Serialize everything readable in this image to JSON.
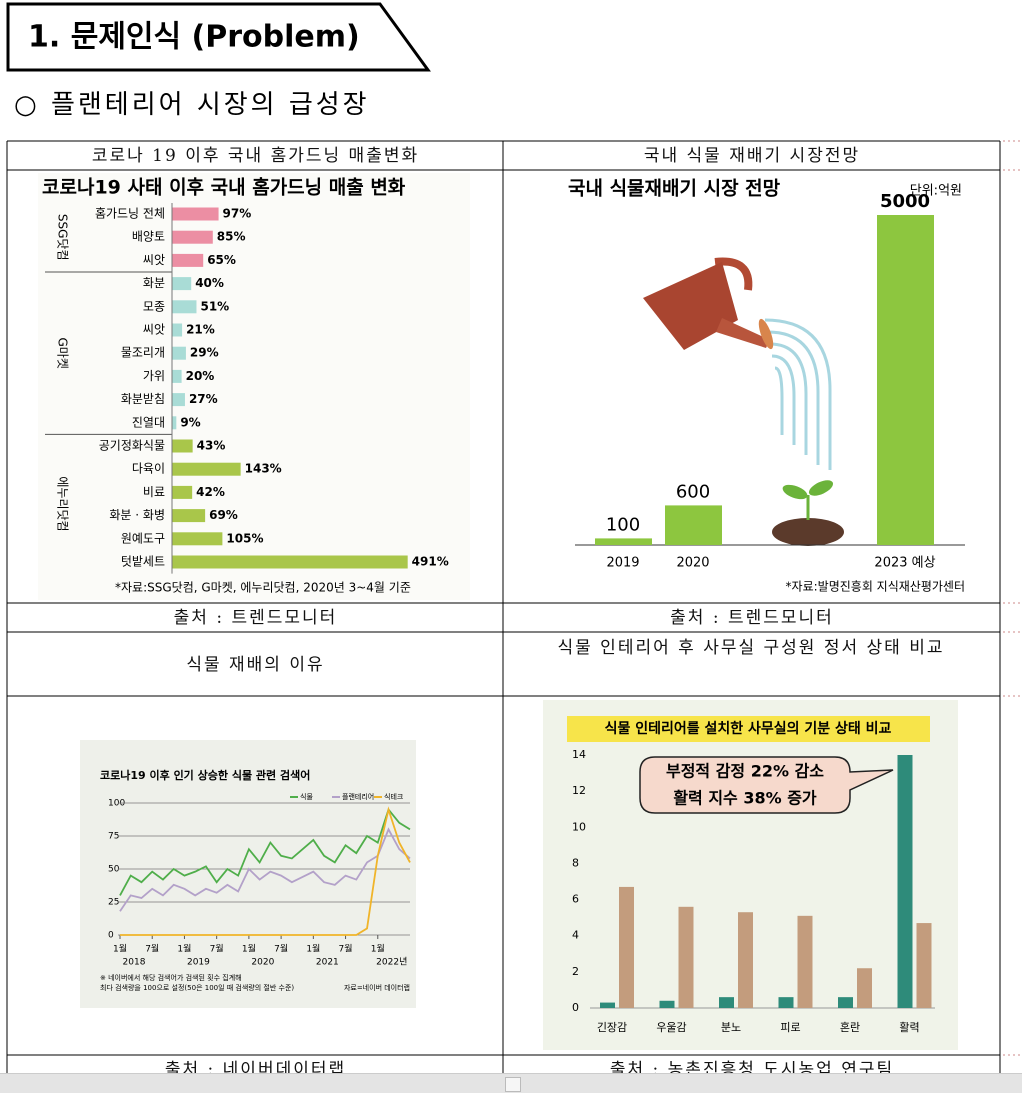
{
  "header": {
    "title": "1. 문제인식 (Problem)"
  },
  "subheading": "○ 플랜테리어 시장의 급성장",
  "table": {
    "cells": [
      [
        "코로나 19 이후 국내 홈가드닝 매출변화",
        "국내 식물 재배기 시장전망"
      ],
      [
        "출처 : 트렌드모니터",
        "출처 : 트렌드모니터"
      ],
      [
        "식물 재배의 이유",
        "식물 인테리어 후 사무실 구성원 정서 상태 비교"
      ],
      [
        "출처 : 네이버데이터랩",
        "출처 : 농촌진흥청 도시농업 연구팀"
      ]
    ]
  },
  "chart_data": [
    {
      "type": "hbar",
      "title": "코로나19 사태 이후 국내 홈가드닝 매출 변화",
      "note": "*자료:SSG닷컴, G마켓, 에누리닷컴, 2020년 3~4월 기준",
      "xlim": [
        0,
        500
      ],
      "series": [
        {
          "name": "SSG닷컴",
          "color": "#ec8ea3",
          "categories": [
            "홈가드닝 전체",
            "배양토",
            "씨앗"
          ],
          "values": [
            97,
            85,
            65
          ],
          "value_labels": [
            "97%",
            "85%",
            "65%"
          ]
        },
        {
          "name": "G마켓",
          "color": "#a9dcd6",
          "categories": [
            "화분",
            "모종",
            "씨앗",
            "물조리개",
            "가위",
            "화분받침",
            "진열대"
          ],
          "values": [
            40,
            51,
            21,
            29,
            20,
            27,
            9
          ],
          "value_labels": [
            "40%",
            "51%",
            "21%",
            "29%",
            "20%",
            "27%",
            "9%"
          ]
        },
        {
          "name": "에누리닷컴",
          "color": "#a9c64a",
          "categories": [
            "공기정화식물",
            "다육이",
            "비료",
            "화분 · 화병",
            "원예도구",
            "텃밭세트"
          ],
          "values": [
            43,
            143,
            42,
            69,
            105,
            491
          ],
          "value_labels": [
            "43%",
            "143%",
            "42%",
            "69%",
            "105%",
            "491%"
          ]
        }
      ]
    },
    {
      "type": "bar",
      "title": "국내 식물재배기 시장 전망",
      "unit": "단위:억원",
      "note": "*자료:발명진흥회 지식재산평가센터",
      "categories": [
        "2019",
        "2020",
        "2023 예상"
      ],
      "values": [
        100,
        600,
        5000
      ],
      "color": "#8dc63f",
      "ylim": [
        0,
        5000
      ]
    },
    {
      "type": "line",
      "title": "코로나19 이후 인기 상승한 식물 관련 검색어",
      "x": [
        "2018-01",
        "2018-03",
        "2018-05",
        "2018-07",
        "2018-09",
        "2018-11",
        "2019-01",
        "2019-03",
        "2019-05",
        "2019-07",
        "2019-09",
        "2019-11",
        "2020-01",
        "2020-03",
        "2020-05",
        "2020-07",
        "2020-09",
        "2020-11",
        "2021-01",
        "2021-03",
        "2021-05",
        "2021-07",
        "2021-09",
        "2021-11",
        "2022-01",
        "2022-03",
        "2022-05",
        "2022-07"
      ],
      "series": [
        {
          "name": "식물",
          "color": "#4fae4a",
          "values": [
            30,
            45,
            40,
            48,
            42,
            50,
            45,
            48,
            52,
            40,
            50,
            45,
            65,
            55,
            70,
            60,
            58,
            65,
            72,
            60,
            55,
            68,
            62,
            75,
            70,
            95,
            85,
            80
          ]
        },
        {
          "name": "플랜테리어",
          "color": "#b3a1c9",
          "values": [
            18,
            30,
            28,
            35,
            30,
            38,
            35,
            30,
            35,
            32,
            38,
            33,
            50,
            42,
            48,
            45,
            40,
            44,
            48,
            40,
            38,
            45,
            42,
            55,
            60,
            80,
            65,
            58
          ]
        },
        {
          "name": "식테크",
          "color": "#f0b429",
          "values": [
            0,
            0,
            0,
            0,
            0,
            0,
            0,
            0,
            0,
            0,
            0,
            0,
            0,
            0,
            0,
            0,
            0,
            0,
            0,
            0,
            0,
            0,
            0,
            5,
            60,
            95,
            70,
            55
          ]
        }
      ],
      "ylim": [
        0,
        100
      ],
      "yticks": [
        0,
        25,
        50,
        75,
        100
      ],
      "grid": true,
      "xticks": [
        {
          "value": "2018-01",
          "label": "1월"
        },
        {
          "value": "2018-07",
          "label": "7월"
        },
        {
          "value": "2019-01",
          "label": "1월"
        },
        {
          "value": "2019-07",
          "label": "7월"
        },
        {
          "value": "2020-01",
          "label": "1월"
        },
        {
          "value": "2020-07",
          "label": "7월"
        },
        {
          "value": "2021-01",
          "label": "1월"
        },
        {
          "value": "2021-07",
          "label": "7월"
        },
        {
          "value": "2022-01",
          "label": "1월"
        }
      ],
      "year_ticks": [
        {
          "value": "2018-01",
          "label": "2018"
        },
        {
          "value": "2019-01",
          "label": "2019"
        },
        {
          "value": "2020-01",
          "label": "2020"
        },
        {
          "value": "2021-01",
          "label": "2021"
        },
        {
          "value": "2022-01",
          "label": "2022년"
        }
      ],
      "notes": [
        "※ 네이버에서 해당 검색어가 검색된 횟수 집계해",
        "최다 검색량을 100으로 설정(50은 100일 때 검색량의 절반 수준)"
      ],
      "source": "자료=네이버 데이터랩"
    },
    {
      "type": "grouped-bar",
      "title": "식물 인테리어를 설치한 사무실의 기분 상태 비교",
      "callout": [
        "부정적 감정 22% 감소",
        "활력 지수 38% 증가"
      ],
      "categories": [
        "긴장감",
        "우울감",
        "분노",
        "피로",
        "혼란",
        "활력"
      ],
      "series": [
        {
          "color": "#2e8b7a",
          "values": [
            0.3,
            0.4,
            0.6,
            0.6,
            0.6,
            14
          ]
        },
        {
          "color": "#c39c7d",
          "values": [
            6.7,
            5.6,
            5.3,
            5.1,
            2.2,
            4.7
          ]
        }
      ],
      "ylim": [
        0,
        14
      ],
      "yticks": [
        0,
        2,
        4,
        6,
        8,
        10,
        12,
        14
      ]
    }
  ]
}
